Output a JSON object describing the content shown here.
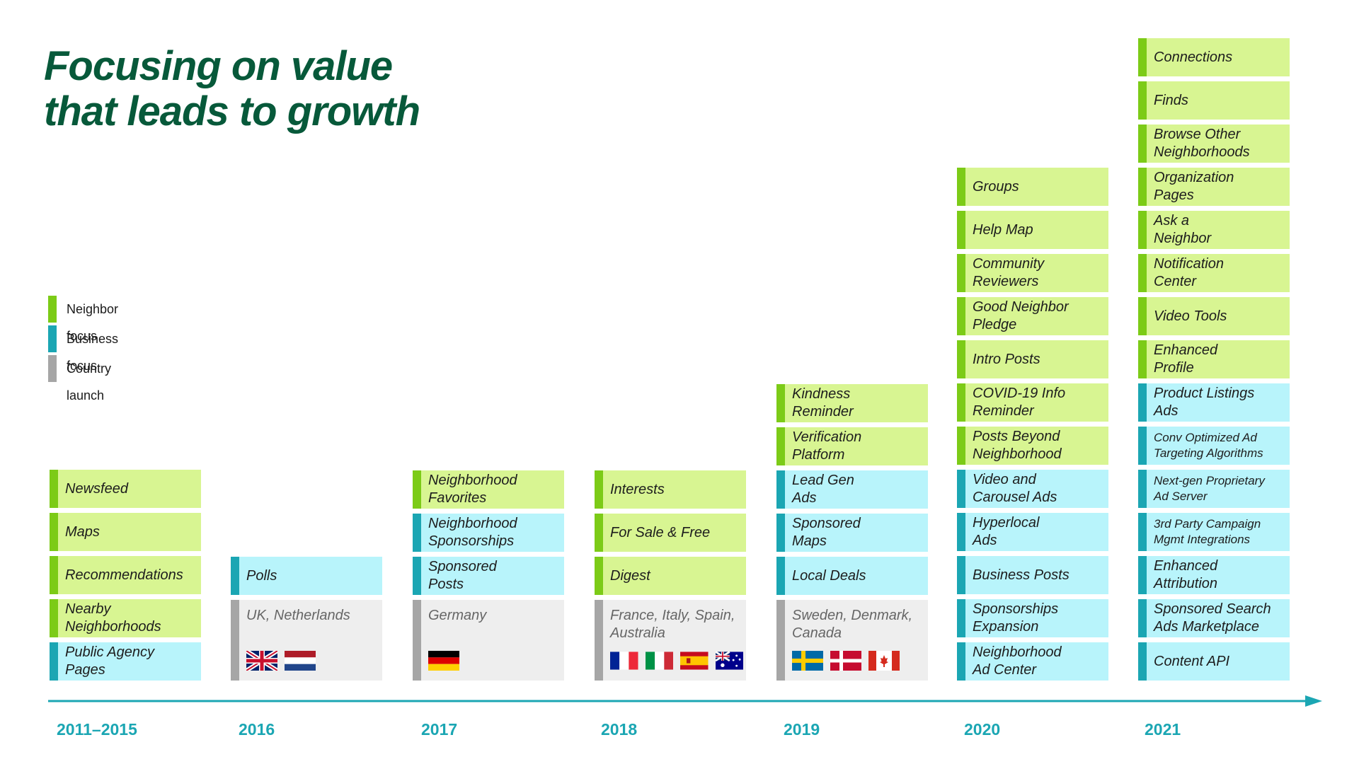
{
  "title": {
    "line1": "Focusing on value",
    "line2": "that leads to growth"
  },
  "legend": [
    {
      "label": "Neighbor focus",
      "color": "#7ccb17"
    },
    {
      "label": "Business focus",
      "color": "#1ba6b3"
    },
    {
      "label": "Country launch",
      "color": "#a6a6a6"
    }
  ],
  "columns": [
    {
      "year": "2011–2015",
      "cards": [
        {
          "lines": [
            "Newsfeed"
          ],
          "type": "neighbor"
        },
        {
          "lines": [
            "Maps"
          ],
          "type": "neighbor"
        },
        {
          "lines": [
            "Recommendations"
          ],
          "type": "neighbor"
        },
        {
          "lines": [
            "Nearby",
            "Neighborhoods"
          ],
          "type": "neighbor"
        },
        {
          "lines": [
            "Public Agency",
            "Pages"
          ],
          "type": "business"
        }
      ]
    },
    {
      "year": "2016",
      "cards": [
        {
          "lines": [
            "Polls"
          ],
          "type": "business"
        }
      ],
      "country": {
        "lines": [
          "UK, Netherlands"
        ],
        "flags": [
          "uk-flag",
          "netherlands-flag"
        ]
      }
    },
    {
      "year": "2017",
      "cards": [
        {
          "lines": [
            "Neighborhood",
            "Favorites"
          ],
          "type": "neighbor"
        },
        {
          "lines": [
            "Neighborhood",
            "Sponsorships"
          ],
          "type": "business"
        },
        {
          "lines": [
            "Sponsored",
            "Posts"
          ],
          "type": "business"
        }
      ],
      "country": {
        "lines": [
          "Germany"
        ],
        "flags": [
          "germany-flag"
        ]
      }
    },
    {
      "year": "2018",
      "cards": [
        {
          "lines": [
            "Interests"
          ],
          "type": "neighbor"
        },
        {
          "lines": [
            "For Sale & Free"
          ],
          "type": "neighbor"
        },
        {
          "lines": [
            "Digest"
          ],
          "type": "neighbor"
        }
      ],
      "country": {
        "lines": [
          "France, Italy, Spain,",
          "Australia"
        ],
        "flags": [
          "france-flag",
          "italy-flag",
          "spain-flag",
          "australia-flag"
        ]
      }
    },
    {
      "year": "2019",
      "cards": [
        {
          "lines": [
            "Kindness",
            "Reminder"
          ],
          "type": "neighbor"
        },
        {
          "lines": [
            "Verification",
            "Platform"
          ],
          "type": "neighbor"
        },
        {
          "lines": [
            "Lead Gen",
            "Ads"
          ],
          "type": "business"
        },
        {
          "lines": [
            "Sponsored",
            "Maps"
          ],
          "type": "business"
        },
        {
          "lines": [
            "Local Deals"
          ],
          "type": "business"
        }
      ],
      "country": {
        "lines": [
          "Sweden, Denmark,",
          "Canada"
        ],
        "flags": [
          "sweden-flag",
          "denmark-flag",
          "canada-flag"
        ]
      }
    },
    {
      "year": "2020",
      "cards": [
        {
          "lines": [
            "Groups"
          ],
          "type": "neighbor"
        },
        {
          "lines": [
            "Help Map"
          ],
          "type": "neighbor"
        },
        {
          "lines": [
            "Community",
            "Reviewers"
          ],
          "type": "neighbor"
        },
        {
          "lines": [
            "Good Neighbor",
            "Pledge"
          ],
          "type": "neighbor"
        },
        {
          "lines": [
            "Intro Posts"
          ],
          "type": "neighbor"
        },
        {
          "lines": [
            "COVID-19 Info",
            "Reminder"
          ],
          "type": "neighbor"
        },
        {
          "lines": [
            "Posts Beyond",
            "Neighborhood"
          ],
          "type": "neighbor"
        },
        {
          "lines": [
            "Video and",
            "Carousel Ads"
          ],
          "type": "business"
        },
        {
          "lines": [
            "Hyperlocal",
            "Ads"
          ],
          "type": "business"
        },
        {
          "lines": [
            "Business Posts"
          ],
          "type": "business"
        },
        {
          "lines": [
            "Sponsorships",
            "Expansion"
          ],
          "type": "business"
        },
        {
          "lines": [
            "Neighborhood",
            "Ad Center"
          ],
          "type": "business"
        }
      ]
    },
    {
      "year": "2021",
      "cards": [
        {
          "lines": [
            "Connections"
          ],
          "type": "neighbor"
        },
        {
          "lines": [
            "Finds"
          ],
          "type": "neighbor"
        },
        {
          "lines": [
            "Browse Other",
            "Neighborhoods"
          ],
          "type": "neighbor"
        },
        {
          "lines": [
            "Organization",
            "Pages"
          ],
          "type": "neighbor"
        },
        {
          "lines": [
            "Ask a",
            "Neighbor"
          ],
          "type": "neighbor"
        },
        {
          "lines": [
            "Notification",
            "Center"
          ],
          "type": "neighbor"
        },
        {
          "lines": [
            "Video Tools"
          ],
          "type": "neighbor"
        },
        {
          "lines": [
            "Enhanced",
            "Profile"
          ],
          "type": "neighbor"
        },
        {
          "lines": [
            "Product Listings",
            "Ads"
          ],
          "type": "business"
        },
        {
          "lines": [
            "Conv Optimized Ad",
            "Targeting Algorithms"
          ],
          "type": "business",
          "small": true
        },
        {
          "lines": [
            "Next-gen Proprietary",
            "Ad Server"
          ],
          "type": "business",
          "small": true
        },
        {
          "lines": [
            "3rd Party Campaign",
            "Mgmt Integrations"
          ],
          "type": "business",
          "small": true
        },
        {
          "lines": [
            "Enhanced",
            "Attribution"
          ],
          "type": "business"
        },
        {
          "lines": [
            "Sponsored Search",
            "Ads Marketplace"
          ],
          "type": "business"
        },
        {
          "lines": [
            "Content API"
          ],
          "type": "business"
        }
      ]
    }
  ]
}
